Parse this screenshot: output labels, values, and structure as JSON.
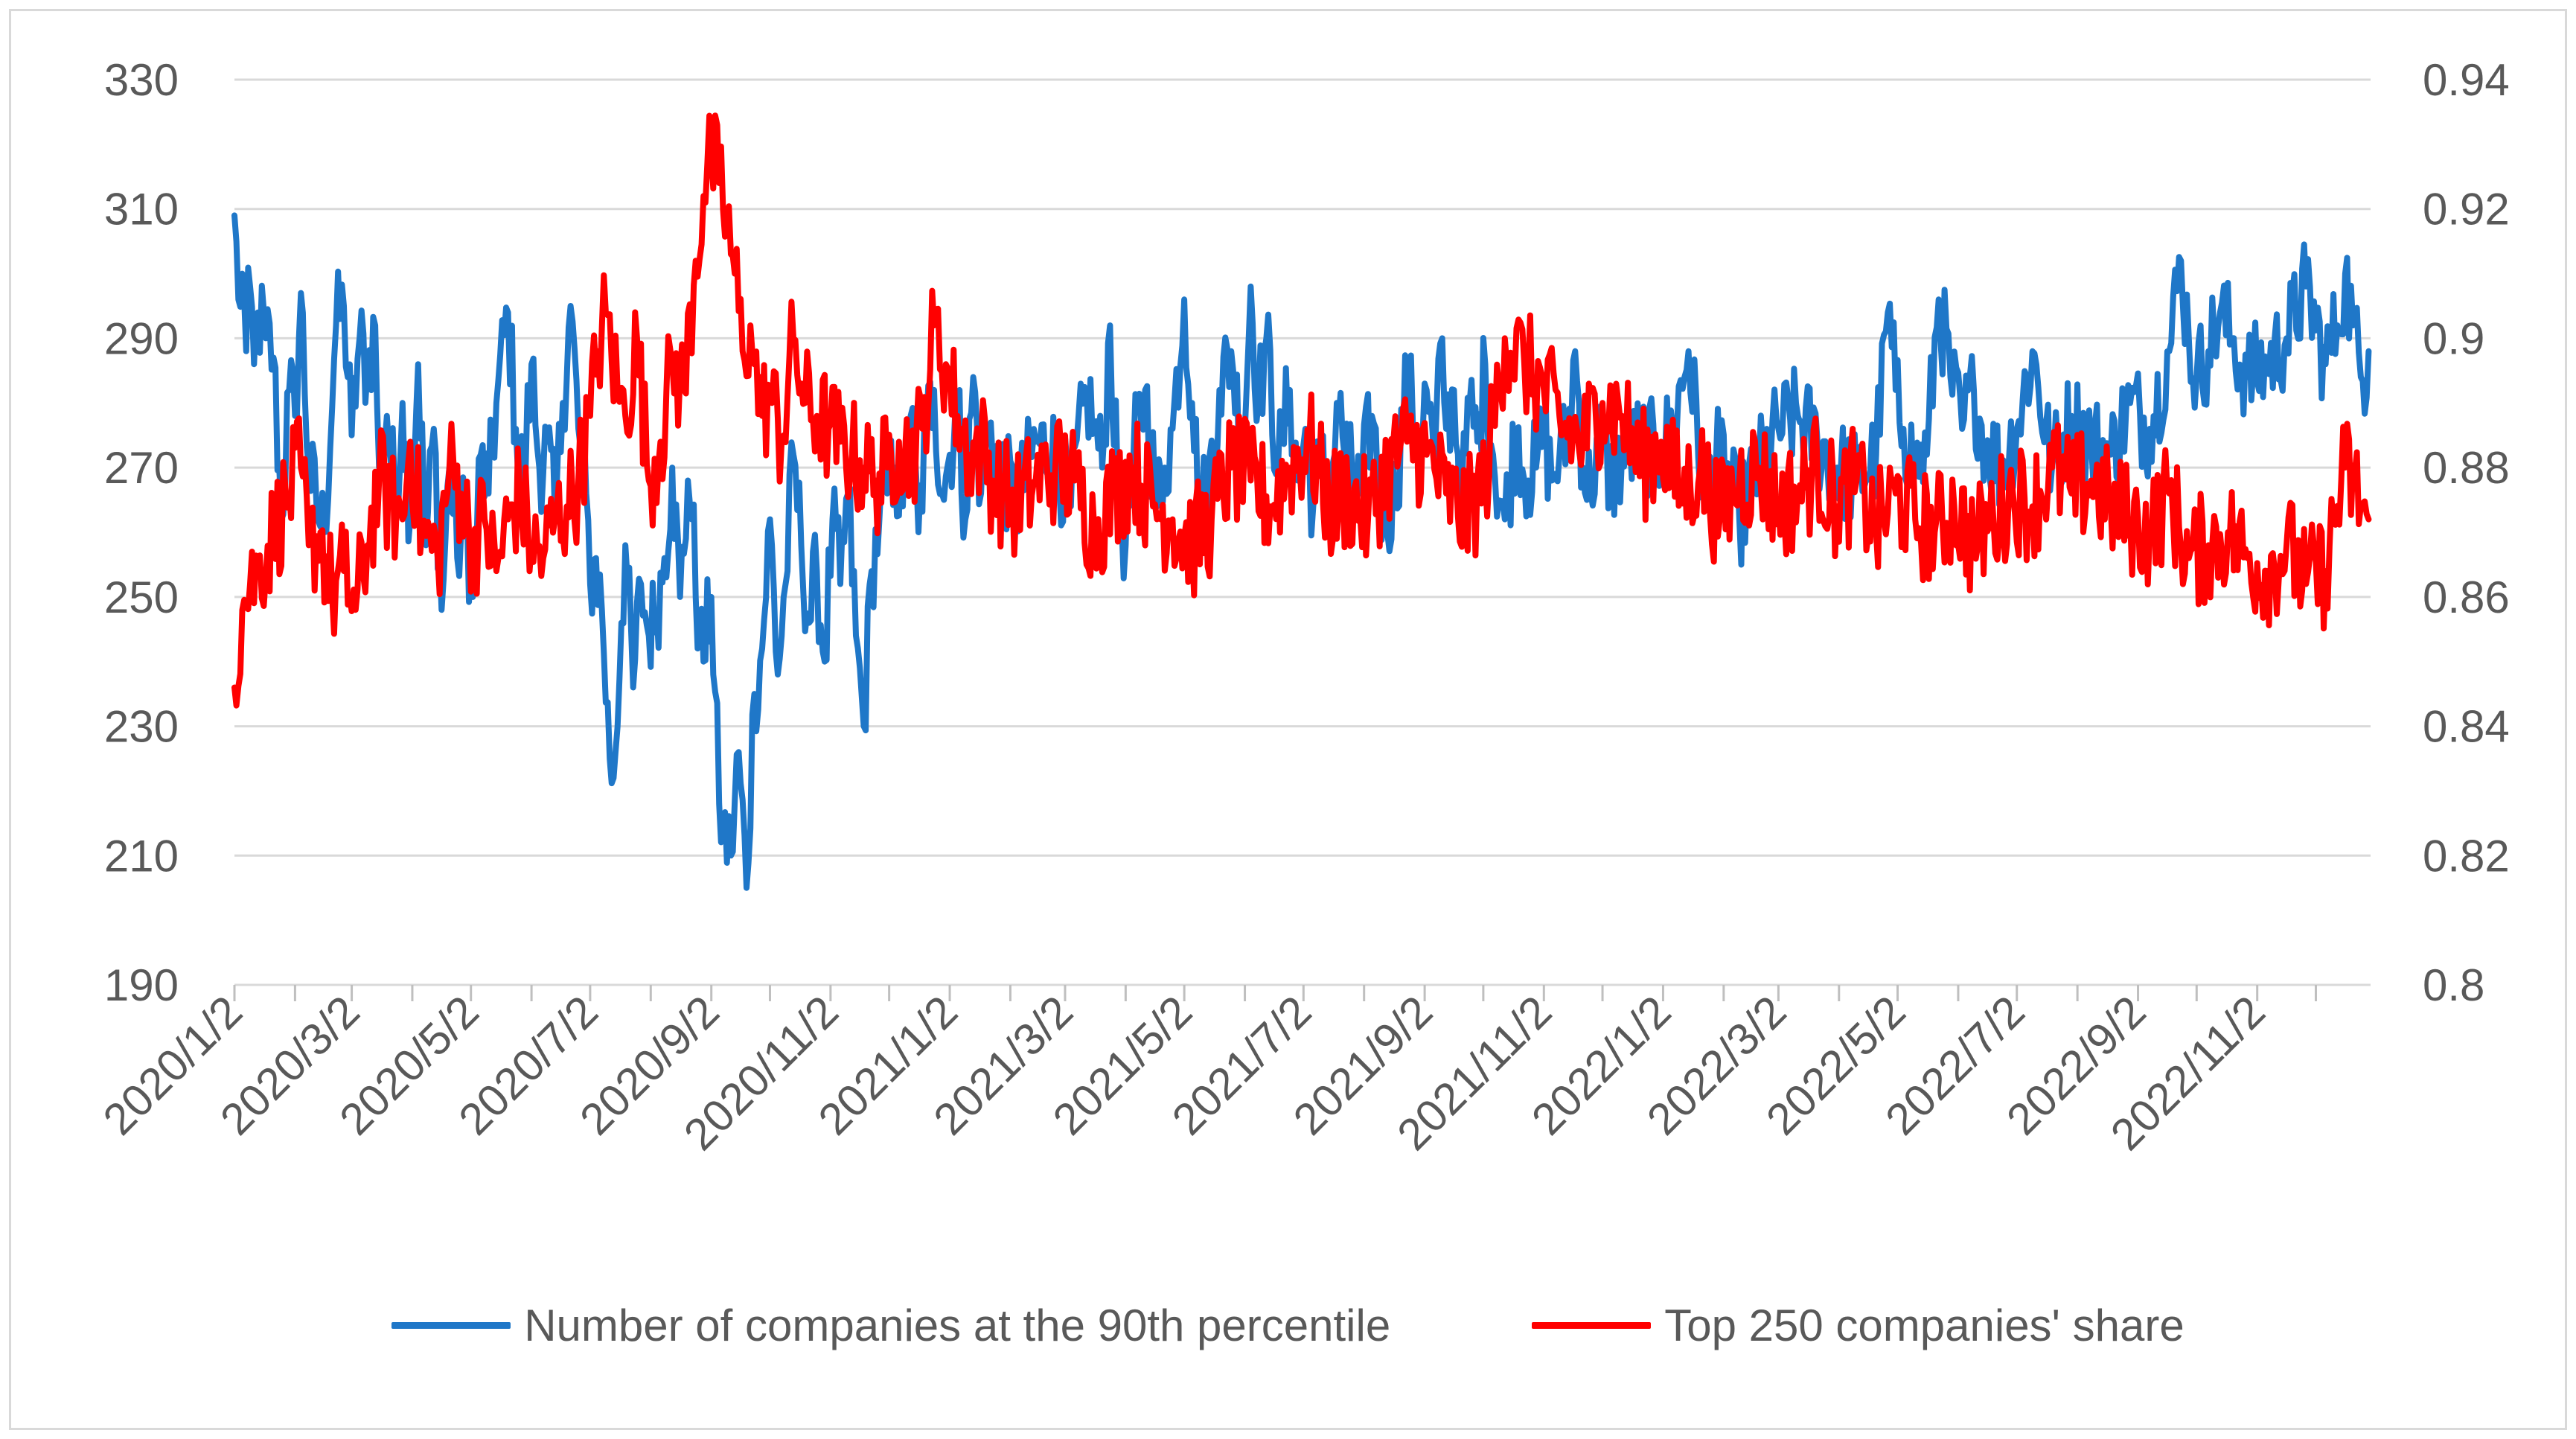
{
  "chart_data": {
    "type": "line",
    "title": "",
    "x_tick_labels": [
      "2020/1/2",
      "2020/3/2",
      "2020/5/2",
      "2020/7/2",
      "2020/9/2",
      "2020/11/2",
      "2021/1/2",
      "2021/3/2",
      "2021/5/2",
      "2021/7/2",
      "2021/9/2",
      "2021/11/2",
      "2022/1/2",
      "2022/3/2",
      "2022/5/2",
      "2022/7/2",
      "2022/9/2",
      "2022/11/2"
    ],
    "x_range": [
      "2020/1/2",
      "2022/12/30"
    ],
    "left_axis": {
      "range": [
        190,
        330
      ],
      "ticks": [
        "330",
        "310",
        "290",
        "270",
        "250",
        "230",
        "210",
        "190"
      ]
    },
    "right_axis": {
      "range": [
        0.8,
        0.94
      ],
      "ticks": [
        "0.94",
        "0.92",
        "0.9",
        "0.88",
        "0.86",
        "0.84",
        "0.82",
        "0.8"
      ]
    },
    "grid": "horizontal",
    "legend_position": "bottom",
    "series": [
      {
        "name": "Number of companies at the 90th percentile",
        "axis": "left",
        "color": "#1f77c8",
        "anchor_days": [
          0,
          2,
          4,
          6,
          8,
          10,
          12,
          16,
          20,
          24,
          28,
          31,
          34,
          38,
          42,
          46,
          52,
          56,
          60,
          64,
          68,
          72,
          74,
          78,
          82,
          86,
          90,
          94,
          98,
          102,
          106,
          110,
          114,
          118,
          122,
          126,
          130,
          134,
          140,
          144,
          148,
          152,
          156,
          160,
          164,
          168,
          172,
          176,
          180,
          182,
          185,
          188,
          192,
          194,
          198,
          200,
          204,
          208,
          212,
          216,
          220,
          224,
          228,
          232,
          234,
          238,
          240,
          244,
          248,
          250,
          254,
          258,
          262,
          266,
          270,
          274,
          278,
          282,
          286,
          290,
          294,
          298,
          302,
          306,
          310,
          314,
          318,
          322,
          326,
          330,
          334,
          338,
          342,
          346,
          350,
          354,
          358,
          362,
          366,
          370,
          374,
          378,
          382,
          386,
          392,
          400,
          410,
          420,
          428,
          436,
          440,
          444,
          448,
          452,
          456,
          460,
          466,
          472,
          476,
          480,
          486,
          490,
          494,
          498,
          504,
          510,
          516,
          520,
          524,
          528,
          534,
          540,
          544,
          548,
          552,
          556,
          560,
          564,
          570,
          576,
          582,
          588,
          594,
          600,
          606,
          610,
          614,
          618,
          620,
          624,
          628,
          632,
          636,
          640,
          644,
          650,
          656,
          662,
          666,
          670,
          674,
          678,
          682,
          686,
          690,
          694,
          698,
          704,
          712,
          720,
          728,
          736,
          744,
          752,
          760,
          770,
          780,
          790,
          800,
          810,
          820,
          830,
          840,
          846,
          850,
          854,
          860,
          866,
          872,
          878,
          884,
          890,
          896,
          904,
          912,
          920,
          930,
          940,
          950,
          960,
          970,
          980,
          990,
          996,
          1000,
          1004,
          1010,
          1016,
          1022,
          1030,
          1040,
          1050,
          1060,
          1070,
          1076,
          1080,
          1084,
          1088,
          1092
        ],
        "anchor_values": [
          309,
          296,
          300,
          288,
          298,
          286,
          294,
          290,
          287,
          262,
          282,
          278,
          297,
          270,
          264,
          260,
          292,
          295,
          275,
          290,
          285,
          292,
          270,
          278,
          266,
          280,
          262,
          286,
          258,
          276,
          248,
          270,
          256,
          264,
          250,
          272,
          266,
          280,
          294,
          276,
          268,
          286,
          270,
          274,
          262,
          280,
          295,
          276,
          266,
          252,
          256,
          248,
          225,
          222,
          246,
          258,
          236,
          252,
          244,
          248,
          256,
          270,
          250,
          268,
          262,
          244,
          240,
          250,
          218,
          214,
          210,
          226,
          205,
          235,
          242,
          262,
          238,
          252,
          272,
          258,
          246,
          254,
          240,
          262,
          252,
          266,
          244,
          230,
          254,
          262,
          266,
          270,
          264,
          278,
          260,
          276,
          282,
          266,
          272,
          280,
          262,
          284,
          266,
          276,
          270,
          264,
          274,
          272,
          264,
          282,
          276,
          270,
          292,
          266,
          258,
          272,
          282,
          264,
          270,
          276,
          296,
          280,
          264,
          266,
          282,
          288,
          272,
          298,
          280,
          290,
          270,
          282,
          268,
          276,
          264,
          272,
          260,
          280,
          270,
          266,
          278,
          262,
          266,
          284,
          272,
          282,
          270,
          290,
          276,
          282,
          264,
          280,
          274,
          286,
          272,
          262,
          276,
          268,
          270,
          276,
          268,
          272,
          274,
          288,
          270,
          266,
          276,
          268,
          272,
          274,
          272,
          276,
          288,
          266,
          272,
          262,
          270,
          276,
          278,
          274,
          270,
          268,
          272,
          294,
          282,
          276,
          270,
          272,
          296,
          284,
          276,
          282,
          274,
          270,
          276,
          288,
          270,
          278,
          274,
          272,
          280,
          276,
          288,
          302,
          290,
          284,
          288,
          294,
          290,
          284,
          286,
          290,
          298,
          286,
          292,
          300,
          292,
          284,
          288
        ],
        "noise_amplitude": 8
      },
      {
        "name": "Top 250 companies' share",
        "axis": "right",
        "color": "#ff0000",
        "anchor_days": [
          0,
          4,
          8,
          12,
          20,
          28,
          34,
          38,
          44,
          50,
          56,
          62,
          68,
          74,
          80,
          86,
          90,
          96,
          104,
          110,
          116,
          122,
          128,
          134,
          140,
          146,
          152,
          158,
          164,
          170,
          176,
          182,
          186,
          190,
          196,
          200,
          206,
          212,
          218,
          224,
          230,
          236,
          240,
          244,
          248,
          252,
          256,
          260,
          264,
          266,
          270,
          274,
          280,
          286,
          292,
          298,
          304,
          310,
          316,
          322,
          328,
          334,
          340,
          346,
          352,
          358,
          364,
          370,
          376,
          382,
          388,
          394,
          400,
          410,
          420,
          430,
          440,
          450,
          460,
          470,
          480,
          490,
          500,
          510,
          520,
          530,
          540,
          550,
          560,
          570,
          580,
          590,
          600,
          610,
          620,
          630,
          640,
          650,
          660,
          670,
          680,
          690,
          700,
          710,
          720,
          730,
          740,
          750,
          760,
          770,
          780,
          790,
          800,
          810,
          820,
          830,
          840,
          850,
          860,
          870,
          880,
          890,
          900,
          910,
          920,
          930,
          940,
          950,
          960,
          970,
          980,
          990,
          1000,
          1010,
          1020,
          1030,
          1040,
          1050,
          1060,
          1070,
          1080,
          1092
        ],
        "anchor_values": [
          0.846,
          0.858,
          0.862,
          0.864,
          0.87,
          0.876,
          0.88,
          0.868,
          0.87,
          0.86,
          0.864,
          0.858,
          0.868,
          0.878,
          0.874,
          0.872,
          0.884,
          0.87,
          0.866,
          0.88,
          0.876,
          0.868,
          0.872,
          0.864,
          0.872,
          0.876,
          0.868,
          0.866,
          0.872,
          0.874,
          0.878,
          0.888,
          0.898,
          0.904,
          0.892,
          0.888,
          0.9,
          0.878,
          0.884,
          0.896,
          0.892,
          0.912,
          0.922,
          0.928,
          0.924,
          0.918,
          0.91,
          0.898,
          0.902,
          0.896,
          0.888,
          0.892,
          0.884,
          0.9,
          0.89,
          0.888,
          0.886,
          0.884,
          0.882,
          0.88,
          0.878,
          0.88,
          0.884,
          0.882,
          0.886,
          0.902,
          0.896,
          0.888,
          0.882,
          0.884,
          0.878,
          0.876,
          0.874,
          0.878,
          0.88,
          0.878,
          0.87,
          0.876,
          0.88,
          0.874,
          0.872,
          0.868,
          0.872,
          0.88,
          0.878,
          0.874,
          0.88,
          0.884,
          0.874,
          0.876,
          0.872,
          0.88,
          0.884,
          0.882,
          0.876,
          0.872,
          0.878,
          0.9,
          0.896,
          0.892,
          0.886,
          0.884,
          0.89,
          0.888,
          0.88,
          0.884,
          0.876,
          0.88,
          0.872,
          0.878,
          0.88,
          0.874,
          0.876,
          0.88,
          0.874,
          0.878,
          0.87,
          0.876,
          0.872,
          0.87,
          0.874,
          0.868,
          0.872,
          0.876,
          0.874,
          0.88,
          0.876,
          0.878,
          0.874,
          0.872,
          0.87,
          0.876,
          0.866,
          0.868,
          0.87,
          0.866,
          0.864,
          0.868,
          0.862,
          0.864,
          0.88,
          0.872
        ],
        "noise_amplitude": 0.009
      }
    ]
  }
}
